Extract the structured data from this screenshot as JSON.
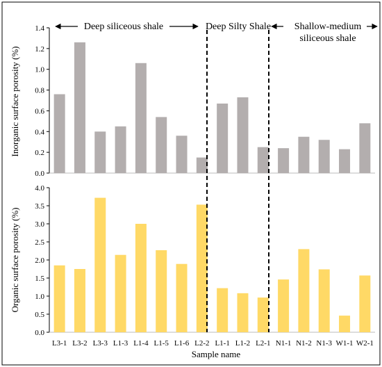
{
  "chart_data": [
    {
      "type": "bar",
      "categories": [
        "L3-1",
        "L3-2",
        "L3-3",
        "L1-3",
        "L1-4",
        "L1-5",
        "L1-6",
        "L2-2",
        "L1-1",
        "L1-2",
        "L2-1",
        "N1-1",
        "N1-2",
        "N1-3",
        "W1-1",
        "W2-1"
      ],
      "values": [
        0.76,
        1.26,
        0.4,
        0.45,
        1.06,
        0.54,
        0.36,
        0.15,
        0.67,
        0.73,
        0.25,
        0.24,
        0.35,
        0.32,
        0.23,
        0.48
      ],
      "ylabel": "Inorganic surface porosity (%)",
      "ylim": [
        0,
        1.4
      ],
      "yticks": [
        "0.0",
        "0.2",
        "0.4",
        "0.6",
        "0.8",
        "1.0",
        "1.2",
        "1.4"
      ],
      "color": "#b3aeae",
      "grid": false
    },
    {
      "type": "bar",
      "categories": [
        "L3-1",
        "L3-2",
        "L3-3",
        "L1-3",
        "L1-4",
        "L1-5",
        "L1-6",
        "L2-2",
        "L1-1",
        "L1-2",
        "L2-1",
        "N1-1",
        "N1-2",
        "N1-3",
        "W1-1",
        "W2-1"
      ],
      "values": [
        1.85,
        1.75,
        3.72,
        2.14,
        3.0,
        2.27,
        1.89,
        3.53,
        1.22,
        1.08,
        0.96,
        1.46,
        2.3,
        1.74,
        0.46,
        1.57
      ],
      "xlabel": "Sample name",
      "ylabel": "Organic surface porosity (%)",
      "ylim": [
        0,
        4.0
      ],
      "yticks": [
        "0.0",
        "0.5",
        "1.0",
        "1.5",
        "2.0",
        "2.5",
        "3.0",
        "3.5",
        "4.0"
      ],
      "color": "#ffd966",
      "grid": false
    }
  ],
  "groups": [
    {
      "label": "Deep siliceous shale"
    },
    {
      "label": "Deep Silty Shale"
    },
    {
      "label_line1": "Shallow-medium",
      "label_line2": "siliceous shale"
    }
  ]
}
